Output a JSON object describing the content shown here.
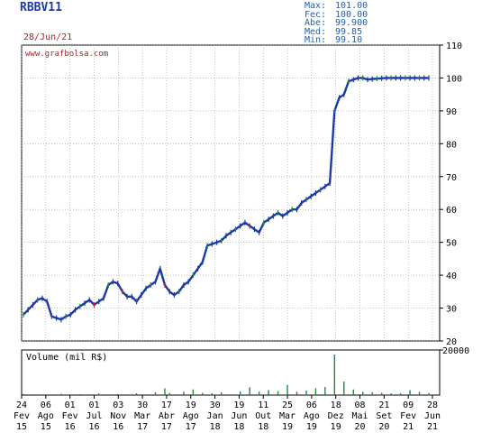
{
  "header": {
    "ticker": "RBBV11",
    "date": "28/Jun/21",
    "stats": [
      {
        "label": "Max:",
        "value": "101.00"
      },
      {
        "label": "Fec:",
        "value": "100.00"
      },
      {
        "label": "Abe:",
        "value": "99.900"
      },
      {
        "label": "Med:",
        "value": "99.85"
      },
      {
        "label": "Min:",
        "value": "99.10"
      }
    ]
  },
  "colors": {
    "price": "#1c3aa6",
    "up": "#1a8a3a",
    "down": "#c02020",
    "volume": "#1a8a3a",
    "frame": "#000000",
    "grid": "#9a9a9a"
  },
  "chart_data": [
    {
      "type": "line",
      "title": "",
      "watermark": "www.grafbolsa.com",
      "ylim": [
        20,
        110
      ],
      "yticks": [
        20,
        30,
        40,
        50,
        60,
        70,
        80,
        90,
        100,
        110
      ],
      "grid": true,
      "x_ticks": [
        {
          "day": "24",
          "month": "Fev",
          "year": "15"
        },
        {
          "day": "06",
          "month": "Ago",
          "year": "15"
        },
        {
          "day": "01",
          "month": "Fev",
          "year": "16"
        },
        {
          "day": "01",
          "month": "Jul",
          "year": "16"
        },
        {
          "day": "03",
          "month": "Nov",
          "year": "16"
        },
        {
          "day": "30",
          "month": "Mar",
          "year": "17"
        },
        {
          "day": "17",
          "month": "Abr",
          "year": "17"
        },
        {
          "day": "19",
          "month": "Ago",
          "year": "17"
        },
        {
          "day": "30",
          "month": "Jan",
          "year": "18"
        },
        {
          "day": "19",
          "month": "Jun",
          "year": "18"
        },
        {
          "day": "11",
          "month": "Out",
          "year": "18"
        },
        {
          "day": "25",
          "month": "Mar",
          "year": "19"
        },
        {
          "day": "06",
          "month": "Ago",
          "year": "19"
        },
        {
          "day": "18",
          "month": "Dez",
          "year": "19"
        },
        {
          "day": "08",
          "month": "Mai",
          "year": "20"
        },
        {
          "day": "21",
          "month": "Set",
          "year": "20"
        },
        {
          "day": "09",
          "month": "Fev",
          "year": "21"
        },
        {
          "day": "28",
          "month": "Jun",
          "year": "21"
        }
      ],
      "series": [
        {
          "x": [
            0,
            1,
            2,
            3,
            4,
            5,
            6,
            7,
            8,
            9,
            10,
            11,
            12,
            13,
            14,
            15,
            16,
            17,
            18,
            19,
            20,
            21,
            22,
            23,
            24,
            25,
            26,
            27,
            28,
            29,
            30,
            31,
            32,
            33,
            34,
            35,
            36,
            37,
            38,
            39,
            40,
            41,
            42,
            43,
            44,
            45,
            46,
            47,
            48,
            49,
            50,
            51,
            52,
            53,
            54,
            55,
            56,
            57,
            58,
            59,
            60,
            61,
            62,
            63,
            64,
            65,
            66,
            67,
            68,
            69,
            70,
            71,
            72,
            73,
            74,
            75,
            76,
            77,
            78,
            79,
            80,
            81,
            82,
            83,
            84,
            85,
            86
          ],
          "values": [
            28,
            29.5,
            31,
            32.5,
            33,
            32,
            27.5,
            27,
            26.5,
            27.5,
            28,
            29.5,
            30.5,
            31.5,
            32.5,
            31,
            32,
            33,
            37,
            38,
            37.5,
            35,
            33.5,
            33.5,
            32,
            34,
            36,
            37,
            38,
            42,
            37,
            35,
            34,
            35,
            37,
            38,
            40,
            42,
            44,
            49,
            49.5,
            50,
            50.5,
            52,
            53,
            54,
            55,
            56,
            55,
            54,
            53,
            56,
            57,
            58,
            59,
            58,
            59,
            60,
            60,
            62,
            63,
            64,
            65,
            66,
            67,
            68,
            90,
            94,
            95,
            99,
            99.5,
            100,
            100,
            99.5,
            99.7,
            99.8,
            99.9,
            100,
            100,
            100,
            100,
            100,
            100,
            100,
            100,
            100,
            100
          ]
        }
      ]
    },
    {
      "type": "bar",
      "title": "Volume (mil R$)",
      "ylim": [
        0,
        20000
      ],
      "yticks": [
        20000
      ],
      "x_ticks_from_panel": 0,
      "series": [
        {
          "x": [
            0,
            4,
            8,
            12,
            16,
            20,
            24,
            28,
            30,
            31,
            34,
            36,
            38,
            40,
            42,
            46,
            48,
            50,
            52,
            54,
            56,
            58,
            60,
            62,
            64,
            66,
            68,
            70,
            72,
            74,
            76,
            78,
            80,
            82,
            84,
            86
          ],
          "values": [
            500,
            300,
            600,
            400,
            700,
            500,
            800,
            1200,
            3000,
            900,
            1500,
            2500,
            1000,
            800,
            1200,
            1600,
            3500,
            1500,
            2200,
            1800,
            4500,
            1500,
            2000,
            3000,
            3600,
            18000,
            6000,
            2500,
            1500,
            1200,
            1000,
            800,
            800,
            2200,
            1500,
            900
          ]
        }
      ]
    }
  ]
}
